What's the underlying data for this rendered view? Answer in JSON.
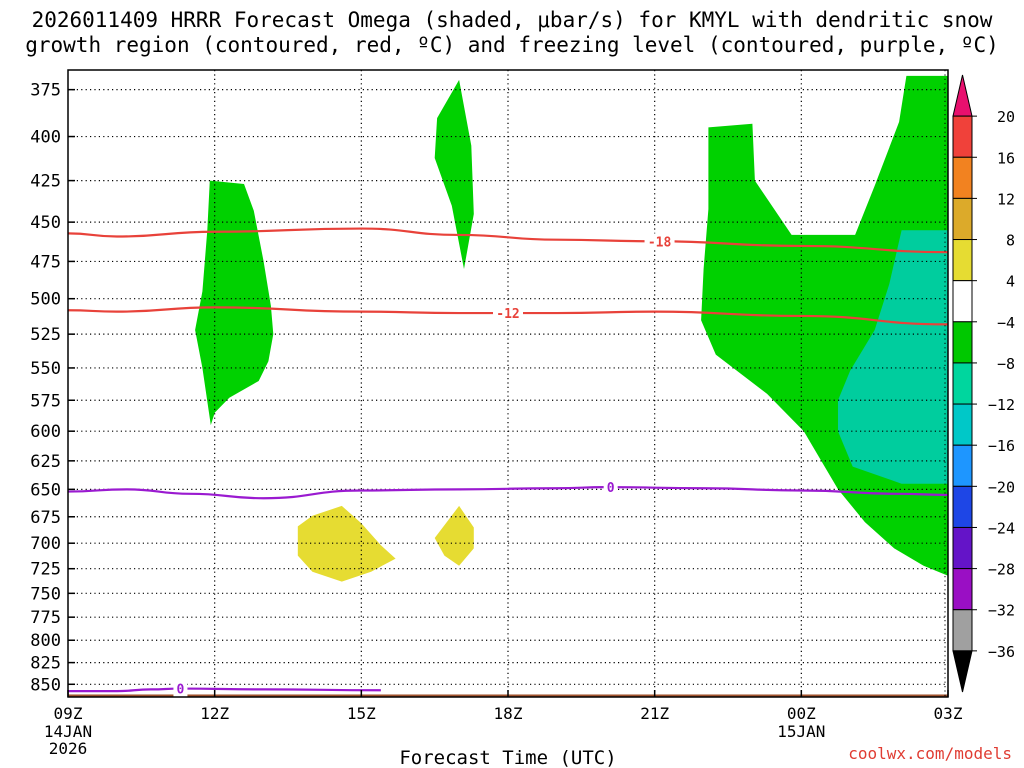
{
  "title": {
    "line1": "2026011409 HRRR Forecast Omega (shaded, μbar/s) for KMYL with dendritic snow",
    "line2": "growth region (contoured, red, ºC) and freezing level (contoured, purple, ºC)"
  },
  "credit": "coolwx.com/models",
  "colors": {
    "dgz_contour": "#e8423a",
    "freezing_contour": "#9a1ad0",
    "ground": "#a0522d",
    "omega_m4_to_m8": "#00d100",
    "omega_m8_to_m12": "#00cd9e",
    "omega_4_to_8": "#e6dc32"
  },
  "chart_data": {
    "type": "heatmap",
    "title": "2026011409 HRRR Forecast Omega (shaded, μbar/s) for KMYL with dendritic snow growth region (contoured, red, ºC) and freezing level (contoured, purple, ºC)",
    "xlabel": "Forecast Time (UTC)",
    "ylabel": "",
    "x_range_hours": [
      0,
      18
    ],
    "y_range_mb": [
      365,
      865
    ],
    "y_scale": "log-pressure (inverted)",
    "grid": true,
    "x_ticks": [
      {
        "hour": 0,
        "label": "09Z",
        "sub1": "14JAN",
        "sub2": "2026"
      },
      {
        "hour": 3,
        "label": "12Z",
        "sub1": "",
        "sub2": ""
      },
      {
        "hour": 6,
        "label": "15Z",
        "sub1": "",
        "sub2": ""
      },
      {
        "hour": 9,
        "label": "18Z",
        "sub1": "",
        "sub2": ""
      },
      {
        "hour": 12,
        "label": "21Z",
        "sub1": "",
        "sub2": ""
      },
      {
        "hour": 15,
        "label": "00Z",
        "sub1": "15JAN",
        "sub2": ""
      },
      {
        "hour": 18,
        "label": "03Z",
        "sub1": "",
        "sub2": ""
      }
    ],
    "y_ticks": [
      375,
      400,
      425,
      450,
      475,
      500,
      525,
      550,
      575,
      600,
      625,
      650,
      675,
      700,
      725,
      750,
      775,
      800,
      825,
      850
    ],
    "colorbar": {
      "labels": [
        "20",
        "16",
        "12",
        "8",
        "4",
        "−4",
        "−8",
        "−12",
        "−16",
        "−20",
        "−24",
        "−28",
        "−32",
        "−36"
      ],
      "colors": [
        "#e8106e",
        "#f0413a",
        "#f28220",
        "#dcaa2a",
        "#e6dc32",
        "#ffffff",
        "#00c800",
        "#00d69e",
        "#00c8c8",
        "#1e96ff",
        "#1e46e6",
        "#6414c8",
        "#9a0fc4",
        "#a0a0a0",
        "#000000"
      ]
    },
    "shaded_regions": [
      {
        "name": "omega -4 to -8",
        "bin": [
          -8,
          -4
        ],
        "color": "#00d100",
        "points": [
          [
            2.9,
            425
          ],
          [
            3.6,
            427
          ],
          [
            3.8,
            443
          ],
          [
            4.0,
            475
          ],
          [
            4.15,
            505
          ],
          [
            4.2,
            525
          ],
          [
            4.1,
            545
          ],
          [
            3.9,
            560
          ],
          [
            3.3,
            573
          ],
          [
            3.0,
            585
          ],
          [
            2.92,
            595
          ],
          [
            2.75,
            550
          ],
          [
            2.6,
            522
          ],
          [
            2.75,
            495
          ],
          [
            2.85,
            455
          ]
        ]
      },
      {
        "name": "omega -4 to -8",
        "bin": [
          -8,
          -4
        ],
        "color": "#00d100",
        "points": [
          [
            8.0,
            370
          ],
          [
            8.25,
            405
          ],
          [
            8.3,
            445
          ],
          [
            8.1,
            480
          ],
          [
            7.85,
            440
          ],
          [
            7.5,
            412
          ],
          [
            7.55,
            390
          ]
        ]
      },
      {
        "name": "omega -4 to -8",
        "bin": [
          -8,
          -4
        ],
        "color": "#00d100",
        "points": [
          [
            13.1,
            395
          ],
          [
            14.0,
            393
          ],
          [
            14.05,
            425
          ],
          [
            14.8,
            458
          ],
          [
            15.95,
            458
          ],
          [
            16.1,
            458
          ],
          [
            16.5,
            428
          ],
          [
            17.0,
            392
          ],
          [
            17.15,
            368
          ],
          [
            18.0,
            368
          ],
          [
            18.0,
            732
          ],
          [
            17.5,
            722
          ],
          [
            16.9,
            705
          ],
          [
            16.3,
            680
          ],
          [
            15.75,
            650
          ],
          [
            15.05,
            600
          ],
          [
            14.3,
            570
          ],
          [
            13.25,
            540
          ],
          [
            12.95,
            515
          ],
          [
            13.0,
            480
          ],
          [
            13.1,
            442
          ]
        ]
      },
      {
        "name": "omega -8 to -12",
        "bin": [
          -12,
          -8
        ],
        "color": "#00cd9e",
        "points": [
          [
            17.05,
            455
          ],
          [
            18.0,
            455
          ],
          [
            18.0,
            645
          ],
          [
            17.05,
            645
          ],
          [
            16.05,
            630
          ],
          [
            15.75,
            600
          ],
          [
            15.75,
            575
          ],
          [
            16.0,
            552
          ],
          [
            16.5,
            522
          ],
          [
            16.8,
            490
          ]
        ]
      },
      {
        "name": "omega 4 to 8",
        "bin": [
          4,
          8
        ],
        "color": "#e6dc32",
        "points": [
          [
            4.7,
            684
          ],
          [
            5.0,
            674
          ],
          [
            5.6,
            665
          ],
          [
            6.0,
            681
          ],
          [
            6.4,
            702
          ],
          [
            6.7,
            715
          ],
          [
            6.2,
            728
          ],
          [
            5.6,
            738
          ],
          [
            5.0,
            728
          ],
          [
            4.7,
            712
          ]
        ]
      },
      {
        "name": "omega 4 to 8",
        "bin": [
          4,
          8
        ],
        "color": "#e6dc32",
        "points": [
          [
            8.0,
            665
          ],
          [
            8.3,
            685
          ],
          [
            8.3,
            705
          ],
          [
            8.0,
            722
          ],
          [
            7.7,
            712
          ],
          [
            7.5,
            695
          ],
          [
            7.7,
            683
          ]
        ]
      }
    ],
    "contours": [
      {
        "name": "dgz -18",
        "level_label": "-18",
        "color": "#e8423a",
        "points": [
          [
            0,
            457
          ],
          [
            1.0,
            459
          ],
          [
            3.0,
            456
          ],
          [
            6.0,
            454
          ],
          [
            8.0,
            458
          ],
          [
            10.0,
            461
          ],
          [
            12.0,
            462
          ],
          [
            15.0,
            465
          ],
          [
            18.0,
            469
          ]
        ],
        "label_at_hour": 12.1
      },
      {
        "name": "dgz -12",
        "level_label": "-12",
        "color": "#e8423a",
        "points": [
          [
            0,
            508
          ],
          [
            1.0,
            509
          ],
          [
            3.0,
            506
          ],
          [
            6.0,
            509
          ],
          [
            8.0,
            510
          ],
          [
            10.0,
            510
          ],
          [
            12.0,
            509
          ],
          [
            15.0,
            512
          ],
          [
            18.0,
            518
          ]
        ],
        "label_at_hour": 9.0
      },
      {
        "name": "freezing level 0",
        "level_label": "0",
        "color": "#9a1ad0",
        "points": [
          [
            0,
            652
          ],
          [
            1.2,
            650
          ],
          [
            2.5,
            654
          ],
          [
            4.0,
            658
          ],
          [
            6.0,
            651
          ],
          [
            8.0,
            650
          ],
          [
            10.0,
            649
          ],
          [
            11.0,
            648
          ],
          [
            13.0,
            649
          ],
          [
            15.0,
            651
          ],
          [
            17.0,
            654
          ],
          [
            18.0,
            655
          ]
        ],
        "label_at_hour": 11.1
      },
      {
        "name": "freezing level 0 (near surface)",
        "level_label": "0",
        "color": "#9a1ad0",
        "points": [
          [
            0,
            858
          ],
          [
            1.0,
            858
          ],
          [
            1.7,
            856
          ],
          [
            2.3,
            855
          ],
          [
            4.0,
            856
          ],
          [
            6.4,
            857
          ]
        ],
        "label_at_hour": 2.3
      }
    ],
    "ground_surface_mb": 862
  }
}
